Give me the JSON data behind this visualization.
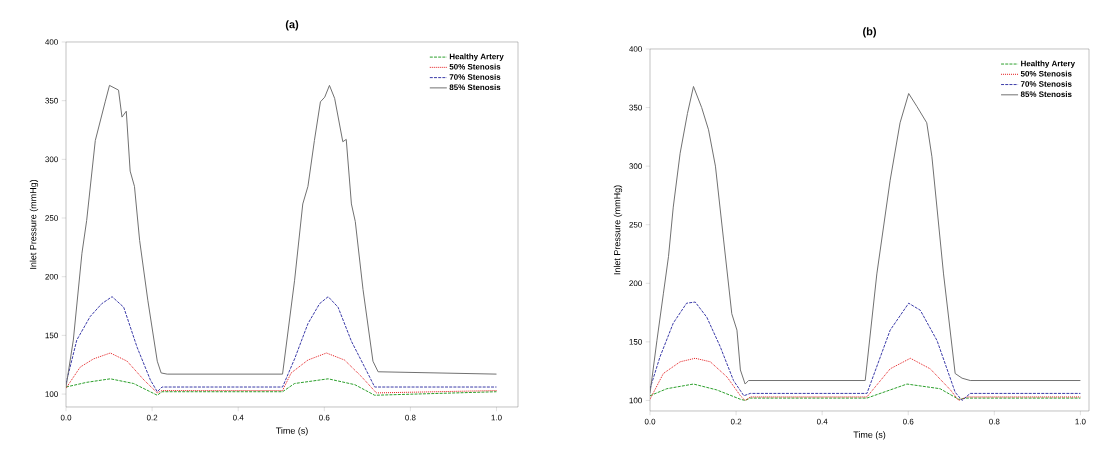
{
  "chart_data": [
    {
      "type": "line",
      "title": "**(a)**",
      "xlabel": "Time (s)",
      "ylabel": "Inlet Pressure (mmHg)",
      "xlim": [
        0,
        1.05
      ],
      "ylim": [
        89,
        400
      ],
      "xticks": [
        {
          "value": 0,
          "label": "0.0"
        },
        {
          "value": 0.2,
          "label": "0.2"
        },
        {
          "value": 0.4,
          "label": "0.4"
        },
        {
          "value": 0.6,
          "label": "0.6"
        },
        {
          "value": 0.8,
          "label": "0.8"
        },
        {
          "value": 1,
          "label": "1.0"
        }
      ],
      "yticks": [
        100,
        150,
        200,
        250,
        300,
        350,
        400
      ],
      "grid": false,
      "legend": "top right",
      "marker": "none",
      "series": [
        {
          "name": "Healthy Artery",
          "color": "#2ca02c",
          "line_style": "dashed",
          "x": [
            0,
            0.048,
            0.103,
            0.157,
            0.212,
            0.223,
            0.503,
            0.531,
            0.609,
            0.671,
            0.717,
            1
          ],
          "values": [
            106,
            110,
            113,
            109,
            99,
            102,
            102,
            109,
            113,
            108,
            99,
            102
          ]
        },
        {
          "name": "50% Stenosis",
          "color": "#e31a1c",
          "line_style": "dotted",
          "x": [
            0,
            0.033,
            0.064,
            0.103,
            0.142,
            0.181,
            0.212,
            0.223,
            0.503,
            0.523,
            0.562,
            0.605,
            0.647,
            0.686,
            0.721,
            1
          ],
          "values": [
            105,
            123,
            130,
            135,
            128,
            112,
            101,
            103,
            103,
            118,
            129,
            135,
            129,
            115,
            101,
            103
          ]
        },
        {
          "name": "70% Stenosis",
          "color": "#3a3aa8",
          "line_style": "dashed",
          "x": [
            0,
            0.025,
            0.056,
            0.083,
            0.107,
            0.134,
            0.165,
            0.196,
            0.212,
            0.223,
            0.503,
            0.531,
            0.562,
            0.589,
            0.609,
            0.632,
            0.663,
            0.702,
            0.717,
            1
          ],
          "values": [
            109,
            146,
            166,
            177,
            183,
            174,
            140,
            112,
            102,
            106,
            106,
            130,
            160,
            177,
            183,
            174,
            145,
            117,
            106,
            106
          ]
        },
        {
          "name": "85% Stenosis",
          "color": "#707070",
          "line_style": "solid",
          "x": [
            0,
            0.017,
            0.037,
            0.048,
            0.068,
            0.091,
            0.101,
            0.122,
            0.13,
            0.14,
            0.149,
            0.159,
            0.171,
            0.19,
            0.212,
            0.221,
            0.235,
            0.503,
            0.531,
            0.55,
            0.562,
            0.577,
            0.591,
            0.601,
            0.612,
            0.624,
            0.643,
            0.651,
            0.663,
            0.672,
            0.69,
            0.713,
            0.725,
            1
          ],
          "values": [
            106,
            146,
            220,
            248,
            316,
            349,
            363,
            359,
            336,
            341,
            290,
            277,
            231,
            180,
            128,
            118,
            117,
            117,
            197,
            262,
            277,
            316,
            349,
            353,
            363,
            352,
            315,
            317,
            262,
            247,
            189,
            128,
            119,
            117
          ]
        }
      ]
    },
    {
      "type": "line",
      "title": "**(b)**",
      "xlabel": "Time (s)",
      "ylabel": "Inlet Pressure (mmHg)",
      "xlim": [
        0,
        1.02
      ],
      "ylim": [
        91,
        400
      ],
      "xticks": [
        {
          "value": 0,
          "label": "0.0"
        },
        {
          "value": 0.2,
          "label": "0.2"
        },
        {
          "value": 0.4,
          "label": "0.4"
        },
        {
          "value": 0.6,
          "label": "0.6"
        },
        {
          "value": 0.8,
          "label": "0.8"
        },
        {
          "value": 1,
          "label": "1.0"
        }
      ],
      "yticks": [
        100,
        150,
        200,
        250,
        300,
        350,
        400
      ],
      "grid": false,
      "legend": "top right",
      "marker": "none",
      "series": [
        {
          "name": "Healthy Artery",
          "color": "#2ca02c",
          "line_style": "dashed",
          "x": [
            0,
            0.039,
            0.101,
            0.155,
            0.21,
            0.221,
            0.233,
            0.504,
            0.597,
            0.674,
            0.717,
            0.736,
            1
          ],
          "values": [
            104,
            110,
            114,
            109,
            101,
            100,
            102,
            102,
            114,
            110,
            101,
            102,
            102
          ]
        },
        {
          "name": "50% Stenosis",
          "color": "#e31a1c",
          "line_style": "dotted",
          "x": [
            0,
            0.031,
            0.07,
            0.105,
            0.14,
            0.179,
            0.21,
            0.221,
            0.233,
            0.504,
            0.558,
            0.605,
            0.651,
            0.698,
            0.717,
            0.736,
            1
          ],
          "values": [
            101,
            123,
            133,
            136,
            133,
            120,
            104,
            100,
            103,
            103,
            127,
            136,
            127,
            109,
            100,
            103,
            103
          ]
        },
        {
          "name": "70% Stenosis",
          "color": "#3a3aa8",
          "line_style": "dashed",
          "x": [
            0,
            0.023,
            0.054,
            0.085,
            0.105,
            0.132,
            0.163,
            0.194,
            0.218,
            0.233,
            0.504,
            0.558,
            0.601,
            0.628,
            0.667,
            0.709,
            0.725,
            0.744,
            1
          ],
          "values": [
            110,
            137,
            166,
            183,
            184,
            171,
            146,
            117,
            104,
            106,
            106,
            160,
            183,
            177,
            151,
            107,
            100,
            106,
            106
          ]
        },
        {
          "name": "85% Stenosis",
          "color": "#707070",
          "line_style": "solid",
          "x": [
            0,
            0.016,
            0.031,
            0.043,
            0.054,
            0.07,
            0.087,
            0.101,
            0.12,
            0.136,
            0.152,
            0.171,
            0.19,
            0.202,
            0.21,
            0.221,
            0.229,
            0.5,
            0.527,
            0.558,
            0.581,
            0.601,
            0.62,
            0.643,
            0.655,
            0.682,
            0.709,
            0.725,
            0.744,
            1
          ],
          "values": [
            106,
            151,
            191,
            223,
            265,
            311,
            345,
            368,
            350,
            331,
            300,
            237,
            174,
            160,
            126,
            114,
            117,
            117,
            208,
            288,
            337,
            362,
            351,
            337,
            308,
            208,
            123,
            119,
            117,
            117
          ]
        }
      ]
    }
  ]
}
